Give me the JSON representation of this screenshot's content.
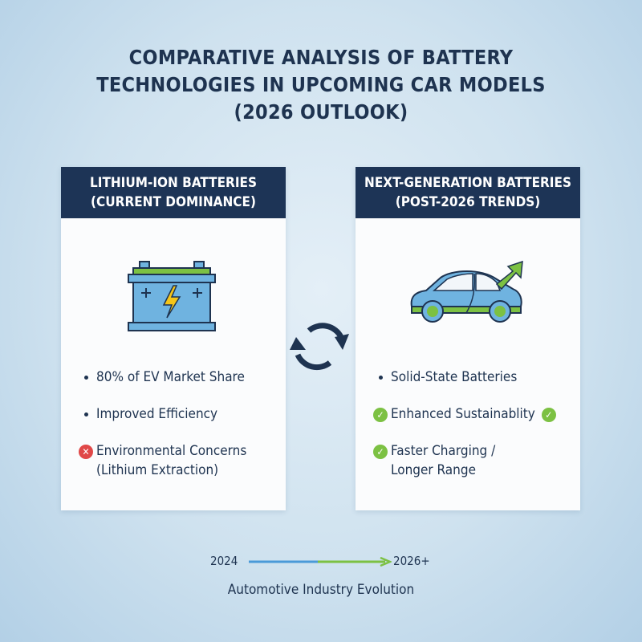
{
  "title": {
    "lines": [
      "COMPARATIVE ANALYSIS OF BATTERY",
      "TECHNOLOGIES IN UPCOMING CAR MODELS",
      "(2026 OUTLOOK)"
    ]
  },
  "left_card": {
    "header": [
      "LITHIUM-ION BATTERIES",
      "(CURRENT DOMINANCE)"
    ],
    "icon": "battery-icon",
    "items": [
      {
        "marker": "bullet",
        "lines": [
          "80% of EV Market Share"
        ]
      },
      {
        "marker": "bullet",
        "lines": [
          "Improved Efficiency"
        ]
      },
      {
        "marker": "x-circle",
        "lines": [
          "Environmental Concerns",
          "(Lithium Extraction)"
        ]
      }
    ]
  },
  "center_icon": "sync-arrows-icon",
  "right_card": {
    "header": [
      "NEXT-GENERATION BATTERIES",
      "(POST-2026 TRENDS)"
    ],
    "icon": "car-growth-arrow-icon",
    "items": [
      {
        "marker": "bullet",
        "lines": [
          "Solid-State Batteries"
        ]
      },
      {
        "marker": "check-circle",
        "lines": [
          "Enhanced Sustainablity"
        ],
        "trailing": "check-circle"
      },
      {
        "marker": "check-circle",
        "lines": [
          "Faster Charging /",
          "Longer Range"
        ]
      }
    ]
  },
  "timeline": {
    "start": "2024",
    "end": "2026+",
    "caption": "Automotive Industry Evolution"
  },
  "colors": {
    "navy": "#1d3456",
    "blue": "#4a9ad8",
    "green": "#7cc143",
    "red": "#e04848",
    "yellow": "#f5c518"
  }
}
